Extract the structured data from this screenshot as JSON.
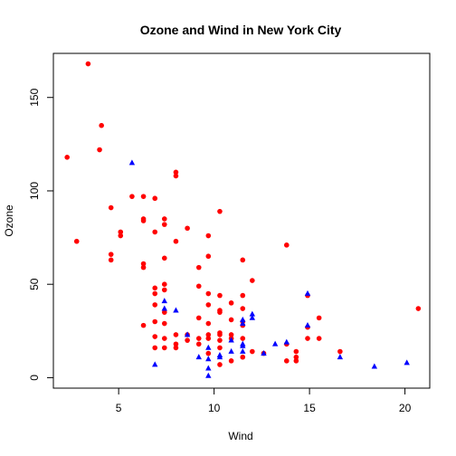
{
  "chart_data": {
    "type": "scatter",
    "title": "Ozone and Wind in New York City",
    "xlabel": "Wind",
    "ylabel": "Ozone",
    "xlim": [
      1.58,
      21.3
    ],
    "ylim": [
      -5.6,
      173.6
    ],
    "x_ticks": [
      5,
      10,
      15,
      20
    ],
    "y_ticks": [
      0,
      50,
      100,
      150
    ],
    "grid": false,
    "legend": "none",
    "series": [
      {
        "marker": "circle",
        "color": "#ff0000",
        "points": [
          [
            2.3,
            118
          ],
          [
            2.8,
            73
          ],
          [
            3.4,
            168
          ],
          [
            4.0,
            122
          ],
          [
            4.1,
            135
          ],
          [
            4.6,
            91
          ],
          [
            4.6,
            66
          ],
          [
            4.6,
            63
          ],
          [
            5.1,
            78
          ],
          [
            5.1,
            76
          ],
          [
            5.7,
            97
          ],
          [
            6.3,
            97
          ],
          [
            6.3,
            85
          ],
          [
            6.3,
            84
          ],
          [
            6.3,
            61
          ],
          [
            6.3,
            59
          ],
          [
            6.3,
            28
          ],
          [
            6.9,
            96
          ],
          [
            6.9,
            78
          ],
          [
            6.9,
            48
          ],
          [
            6.9,
            45
          ],
          [
            6.9,
            39
          ],
          [
            6.9,
            30
          ],
          [
            6.9,
            22
          ],
          [
            6.9,
            16
          ],
          [
            7.4,
            85
          ],
          [
            7.4,
            82
          ],
          [
            7.4,
            64
          ],
          [
            7.4,
            50
          ],
          [
            7.4,
            47
          ],
          [
            7.4,
            35
          ],
          [
            7.4,
            29
          ],
          [
            7.4,
            21
          ],
          [
            7.4,
            16
          ],
          [
            8.0,
            110
          ],
          [
            8.0,
            108
          ],
          [
            8.0,
            73
          ],
          [
            8.0,
            23
          ],
          [
            8.0,
            18
          ],
          [
            8.0,
            16
          ],
          [
            8.6,
            80
          ],
          [
            8.6,
            23
          ],
          [
            8.6,
            20
          ],
          [
            9.2,
            59
          ],
          [
            9.2,
            49
          ],
          [
            9.2,
            32
          ],
          [
            9.2,
            21
          ],
          [
            9.2,
            18
          ],
          [
            9.7,
            76
          ],
          [
            9.7,
            65
          ],
          [
            9.7,
            45
          ],
          [
            9.7,
            39
          ],
          [
            9.7,
            29
          ],
          [
            9.7,
            23
          ],
          [
            9.7,
            21
          ],
          [
            9.7,
            13
          ],
          [
            10.3,
            89
          ],
          [
            10.3,
            44
          ],
          [
            10.3,
            36
          ],
          [
            10.3,
            35
          ],
          [
            10.3,
            24
          ],
          [
            10.3,
            23
          ],
          [
            10.3,
            20
          ],
          [
            10.3,
            16
          ],
          [
            10.3,
            7
          ],
          [
            10.9,
            40
          ],
          [
            10.9,
            31
          ],
          [
            10.9,
            23
          ],
          [
            10.9,
            21
          ],
          [
            10.9,
            9
          ],
          [
            11.5,
            63
          ],
          [
            11.5,
            44
          ],
          [
            11.5,
            37
          ],
          [
            11.5,
            30
          ],
          [
            11.5,
            28
          ],
          [
            11.5,
            21
          ],
          [
            11.5,
            11
          ],
          [
            12.0,
            52
          ],
          [
            12.0,
            14
          ],
          [
            12.6,
            13
          ],
          [
            13.8,
            71
          ],
          [
            13.8,
            18
          ],
          [
            13.8,
            9
          ],
          [
            14.3,
            14
          ],
          [
            14.3,
            11
          ],
          [
            14.3,
            9
          ],
          [
            14.9,
            44
          ],
          [
            14.9,
            27
          ],
          [
            14.9,
            21
          ],
          [
            15.5,
            32
          ],
          [
            15.5,
            21
          ],
          [
            16.6,
            14
          ],
          [
            20.7,
            37
          ]
        ]
      },
      {
        "marker": "triangle",
        "color": "#0000ff",
        "points": [
          [
            5.7,
            115
          ],
          [
            6.9,
            7
          ],
          [
            7.4,
            41
          ],
          [
            7.4,
            37
          ],
          [
            8.0,
            36
          ],
          [
            8.6,
            23
          ],
          [
            9.2,
            11
          ],
          [
            9.7,
            16
          ],
          [
            9.7,
            10
          ],
          [
            9.7,
            5
          ],
          [
            9.7,
            1
          ],
          [
            10.3,
            12
          ],
          [
            10.3,
            11
          ],
          [
            10.9,
            20
          ],
          [
            10.9,
            14
          ],
          [
            11.5,
            31
          ],
          [
            11.5,
            29
          ],
          [
            11.5,
            18
          ],
          [
            11.5,
            17
          ],
          [
            11.5,
            14
          ],
          [
            12.0,
            34
          ],
          [
            12.0,
            32
          ],
          [
            12.6,
            13
          ],
          [
            13.2,
            18
          ],
          [
            13.8,
            19
          ],
          [
            14.9,
            45
          ],
          [
            14.9,
            28
          ],
          [
            16.6,
            11
          ],
          [
            18.4,
            6
          ],
          [
            20.1,
            8
          ]
        ]
      }
    ]
  }
}
